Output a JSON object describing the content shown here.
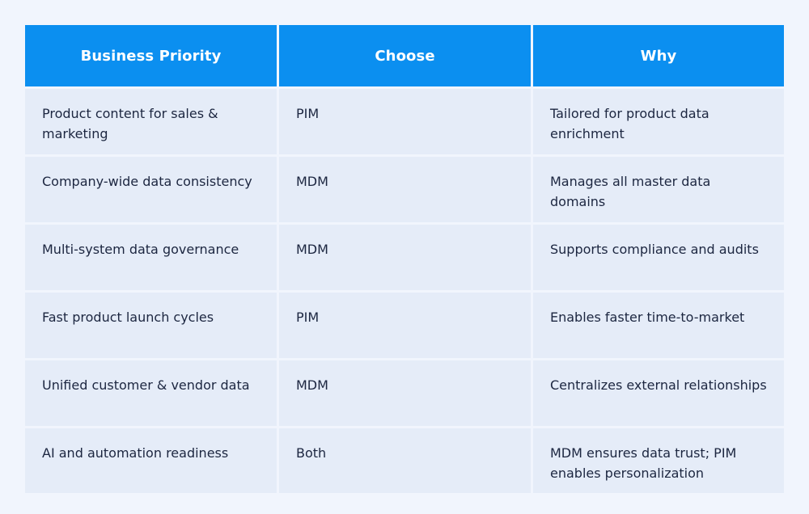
{
  "table": {
    "headers": [
      "Business Priority",
      "Choose",
      "Why"
    ],
    "rows": [
      {
        "priority": "Product content for sales & marketing",
        "choose": "PIM",
        "why": "Tailored for product data enrichment"
      },
      {
        "priority": "Company-wide data consistency",
        "choose": "MDM",
        "why": "Manages all master data domains"
      },
      {
        "priority": "Multi-system data governance",
        "choose": "MDM",
        "why": "Supports compliance and audits"
      },
      {
        "priority": "Fast product launch cycles",
        "choose": "PIM",
        "why": "Enables faster time-to-market"
      },
      {
        "priority": "Unified customer & vendor data",
        "choose": "MDM",
        "why": "Centralizes external relationships"
      },
      {
        "priority": "AI and automation readiness",
        "choose": "Both",
        "why": "MDM ensures data trust; PIM enables personalization"
      }
    ]
  },
  "colors": {
    "header_bg": "#0b8ff0",
    "row_bg": "#e5ecf8",
    "page_bg": "#f1f5fd",
    "text": "#1c2640"
  }
}
